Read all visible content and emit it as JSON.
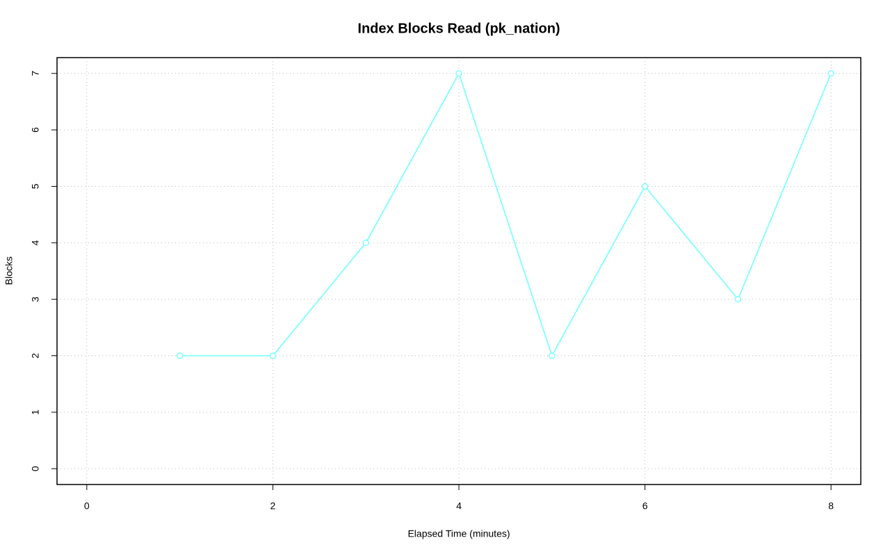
{
  "chart_data": {
    "type": "line",
    "title": "Index Blocks Read (pk_nation)",
    "x_label": "Elapsed Time (minutes)",
    "y_label": "Blocks",
    "x": [
      1,
      2,
      3,
      4,
      5,
      6,
      7,
      8
    ],
    "values": [
      2,
      2,
      4,
      7,
      2,
      5,
      3,
      7
    ],
    "color": "#7fffff",
    "xlim": [
      -0.32,
      8.32
    ],
    "xticks": [
      0,
      2,
      4,
      6,
      8
    ],
    "ylim": [
      -0.28,
      7.28
    ],
    "yticks": [
      0,
      1,
      2,
      3,
      4,
      5,
      6,
      7
    ],
    "grid": true
  }
}
